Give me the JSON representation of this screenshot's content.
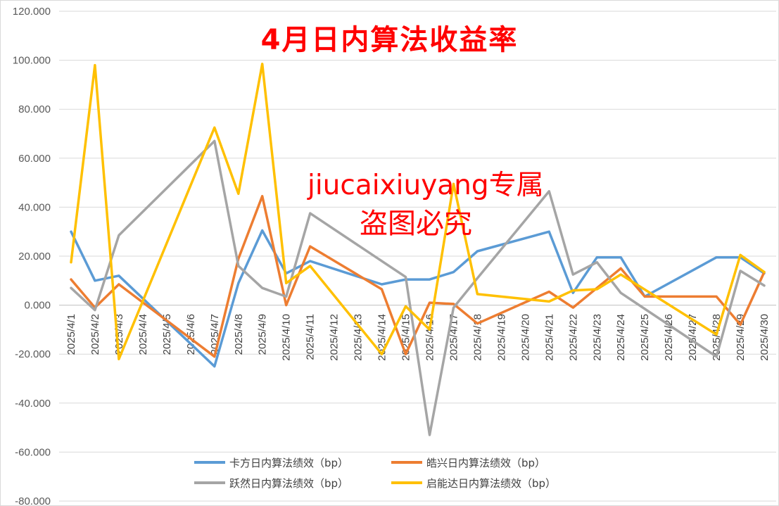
{
  "chart_data": {
    "type": "line",
    "title": "4月日内算法收益率",
    "xlabel": "",
    "ylabel": "",
    "ylim": [
      -80,
      120
    ],
    "yticks": [
      "-80.000",
      "-60.000",
      "-40.000",
      "-20.000",
      "0.000",
      "20.000",
      "40.000",
      "60.000",
      "80.000",
      "100.000",
      "120.000"
    ],
    "ytick_values": [
      -80,
      -60,
      -40,
      -20,
      0,
      20,
      40,
      60,
      80,
      100,
      120
    ],
    "grid": "horizontal",
    "legend_position": "bottom",
    "categories": [
      "2025/4/1",
      "2025/4/2",
      "2025/4/3",
      "2025/4/4",
      "2025/4/5",
      "2025/4/6",
      "2025/4/7",
      "2025/4/8",
      "2025/4/9",
      "2025/4/10",
      "2025/4/11",
      "2025/4/12",
      "2025/4/13",
      "2025/4/14",
      "2025/4/15",
      "2025/4/16",
      "2025/4/17",
      "2025/4/18",
      "2025/4/19",
      "2025/4/20",
      "2025/4/21",
      "2025/4/22",
      "2025/4/23",
      "2025/4/24",
      "2025/4/25",
      "2025/4/26",
      "2025/4/27",
      "2025/4/28",
      "2025/4/29",
      "2025/4/30"
    ],
    "series": [
      {
        "name": "卡方日内算法绩效（bp）",
        "color": "#5b9bd5",
        "points": [
          [
            0,
            30
          ],
          [
            1,
            10
          ],
          [
            2,
            12
          ],
          [
            6,
            -25
          ],
          [
            7,
            9
          ],
          [
            8,
            30.5
          ],
          [
            9,
            13
          ],
          [
            10,
            18
          ],
          [
            13,
            8.5
          ],
          [
            14,
            10.5
          ],
          [
            15,
            10.5
          ],
          [
            16,
            13.5
          ],
          [
            17,
            22
          ],
          [
            20,
            30
          ],
          [
            21,
            5
          ],
          [
            22,
            19.5
          ],
          [
            23,
            19.5
          ],
          [
            24,
            3.5
          ],
          [
            27,
            19.5
          ],
          [
            28,
            19.5
          ],
          [
            29,
            13
          ]
        ]
      },
      {
        "name": "皓兴日内算法绩效（bp）",
        "color": "#ed7d31",
        "points": [
          [
            0,
            10.5
          ],
          [
            1,
            -1
          ],
          [
            2,
            8.5
          ],
          [
            6,
            -21
          ],
          [
            7,
            19
          ],
          [
            8,
            44.5
          ],
          [
            9,
            0
          ],
          [
            10,
            24
          ],
          [
            13,
            6.5
          ],
          [
            14,
            -20
          ],
          [
            15,
            1
          ],
          [
            16,
            0.5
          ],
          [
            17,
            -7.5
          ],
          [
            20,
            5.5
          ],
          [
            21,
            -1
          ],
          [
            22,
            7
          ],
          [
            23,
            15
          ],
          [
            24,
            3.5
          ],
          [
            27,
            3.5
          ],
          [
            28,
            -8
          ],
          [
            29,
            13.5
          ]
        ]
      },
      {
        "name": "跃然日内算法绩效（bp）",
        "color": "#a5a5a5",
        "points": [
          [
            0,
            7
          ],
          [
            1,
            -2
          ],
          [
            2,
            28.5
          ],
          [
            6,
            67
          ],
          [
            7,
            16
          ],
          [
            8,
            7
          ],
          [
            9,
            3.5
          ],
          [
            10,
            37.5
          ],
          [
            14,
            11.5
          ],
          [
            15,
            -53
          ],
          [
            16,
            -1
          ],
          [
            17,
            11
          ],
          [
            20,
            46.5
          ],
          [
            21,
            12.5
          ],
          [
            22,
            17.5
          ],
          [
            23,
            5
          ],
          [
            27,
            -21
          ],
          [
            28,
            14
          ],
          [
            29,
            8
          ]
        ]
      },
      {
        "name": "启能达日内算法绩效（bp）",
        "color": "#ffc000",
        "points": [
          [
            0,
            17.5
          ],
          [
            1,
            98
          ],
          [
            2,
            -22
          ],
          [
            6,
            72.5
          ],
          [
            7,
            45.5
          ],
          [
            8,
            98.5
          ],
          [
            9,
            9
          ],
          [
            10,
            16
          ],
          [
            13,
            -20
          ],
          [
            14,
            -0.5
          ],
          [
            15,
            -10
          ],
          [
            16,
            49.5
          ],
          [
            17,
            4.5
          ],
          [
            20,
            1.5
          ],
          [
            21,
            6
          ],
          [
            22,
            6.5
          ],
          [
            23,
            12.5
          ],
          [
            27,
            -12
          ],
          [
            28,
            20.5
          ],
          [
            29,
            13.5
          ]
        ]
      }
    ]
  },
  "watermark": {
    "line1": "jiucaixiuyang专属",
    "line2": "盗图必究"
  }
}
